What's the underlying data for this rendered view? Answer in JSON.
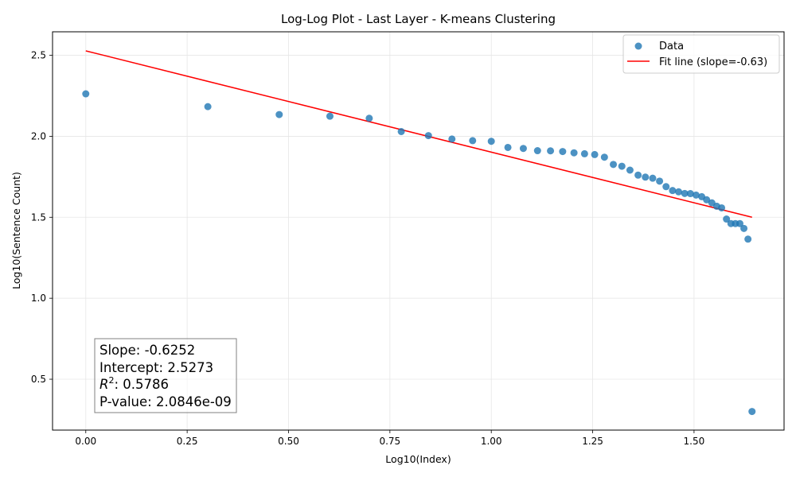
{
  "chart_data": {
    "type": "scatter",
    "title": "Log-Log Plot - Last Layer - K-means Clustering",
    "xlabel": "Log10(Index)",
    "ylabel": "Log10(Sentence Count)",
    "xlim": [
      -0.082,
      1.722
    ],
    "ylim": [
      0.186,
      2.645
    ],
    "x_ticks": [
      0.0,
      0.25,
      0.5,
      0.75,
      1.0,
      1.25,
      1.5
    ],
    "x_tick_labels": [
      "0.00",
      "0.25",
      "0.50",
      "0.75",
      "1.00",
      "1.25",
      "1.50"
    ],
    "y_ticks": [
      0.5,
      1.0,
      1.5,
      2.0,
      2.5
    ],
    "y_tick_labels": [
      "0.5",
      "1.0",
      "1.5",
      "2.0",
      "2.5"
    ],
    "grid": true,
    "legend_position": "top-right",
    "series": [
      {
        "name": "Data",
        "kind": "scatter",
        "color": "#1f77b4",
        "points": [
          [
            0.0,
            2.262
          ],
          [
            0.301,
            2.183
          ],
          [
            0.477,
            2.134
          ],
          [
            0.602,
            2.124
          ],
          [
            0.699,
            2.111
          ],
          [
            0.778,
            2.029
          ],
          [
            0.845,
            2.004
          ],
          [
            0.903,
            1.983
          ],
          [
            0.954,
            1.973
          ],
          [
            1.0,
            1.969
          ],
          [
            1.041,
            1.931
          ],
          [
            1.079,
            1.925
          ],
          [
            1.114,
            1.911
          ],
          [
            1.146,
            1.91
          ],
          [
            1.176,
            1.906
          ],
          [
            1.204,
            1.898
          ],
          [
            1.23,
            1.892
          ],
          [
            1.255,
            1.887
          ],
          [
            1.279,
            1.871
          ],
          [
            1.301,
            1.826
          ],
          [
            1.322,
            1.815
          ],
          [
            1.342,
            1.791
          ],
          [
            1.362,
            1.76
          ],
          [
            1.38,
            1.748
          ],
          [
            1.398,
            1.741
          ],
          [
            1.415,
            1.723
          ],
          [
            1.431,
            1.689
          ],
          [
            1.447,
            1.665
          ],
          [
            1.462,
            1.657
          ],
          [
            1.477,
            1.647
          ],
          [
            1.491,
            1.646
          ],
          [
            1.505,
            1.637
          ],
          [
            1.519,
            1.627
          ],
          [
            1.531,
            1.608
          ],
          [
            1.544,
            1.589
          ],
          [
            1.556,
            1.568
          ],
          [
            1.568,
            1.558
          ],
          [
            1.58,
            1.489
          ],
          [
            1.591,
            1.461
          ],
          [
            1.602,
            1.461
          ],
          [
            1.613,
            1.461
          ],
          [
            1.623,
            1.431
          ],
          [
            1.633,
            1.365
          ],
          [
            1.643,
            0.301
          ]
        ]
      },
      {
        "name": "Fit line (slope=-0.63)",
        "kind": "line",
        "color": "#ff0000",
        "slope": -0.6252,
        "intercept": 2.5273,
        "x_range": [
          0.0,
          1.643
        ]
      }
    ],
    "annotations": {
      "slope": "Slope: -0.6252",
      "intercept": "Intercept: 2.5273",
      "r2_prefix": "R",
      "r2_suffix": ": 0.5786",
      "pvalue": "P-value: 2.0846e-09"
    }
  }
}
